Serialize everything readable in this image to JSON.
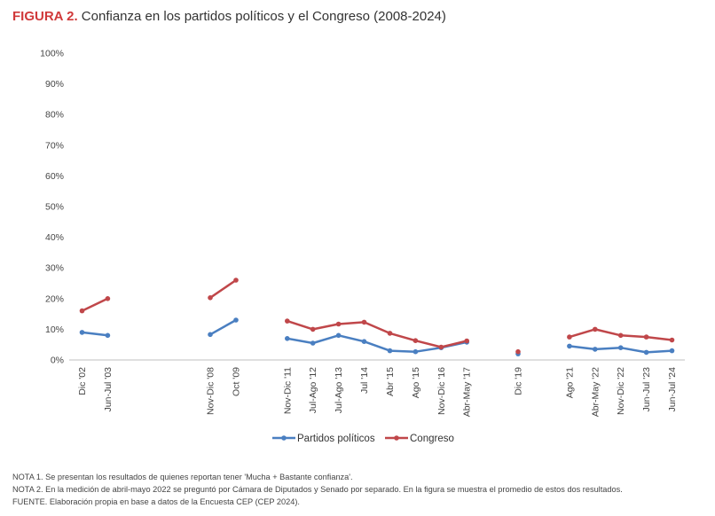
{
  "header": {
    "figure_label": "FIGURA 2.",
    "title": "Confianza en los partidos políticos y el Congreso (2008-2024)"
  },
  "colors": {
    "partidos": "#4a7fc1",
    "congreso": "#c0474a",
    "title_accent": "#d0393a"
  },
  "chart_data": {
    "type": "line",
    "title": "Confianza en los partidos políticos y el Congreso (2008-2024)",
    "categories": [
      "Dic '02",
      "Jun-Jul '03",
      "",
      "",
      "",
      "Nov-Dic '08",
      "Oct '09",
      "",
      "Nov-Dic '11",
      "Jul-Ago '12",
      "Jul-Ago '13",
      "Jul '14",
      "Abr '15",
      "Ago '15",
      "Nov-Dic '16",
      "Abr-May '17",
      "",
      "Dic '19",
      "",
      "Ago '21",
      "Abr-May '22",
      "Nov-Dic '22",
      "Jun-Jul '23",
      "Jun-Jul '24"
    ],
    "series": [
      {
        "name": "Partidos políticos",
        "values": [
          9,
          8,
          null,
          null,
          null,
          8.3,
          13,
          null,
          7,
          5.5,
          8,
          6,
          3,
          2.7,
          4,
          5.8,
          null,
          2,
          null,
          4.5,
          3.5,
          4,
          2.5,
          3
        ]
      },
      {
        "name": "Congreso",
        "values": [
          16,
          20,
          null,
          null,
          null,
          20.3,
          26,
          null,
          12.7,
          10,
          11.7,
          12.3,
          8.7,
          6.3,
          4.2,
          6.2,
          null,
          2.7,
          null,
          7.5,
          10,
          8,
          7.5,
          6.5
        ]
      }
    ],
    "ylim": [
      0,
      100
    ],
    "yticks": [
      "0%",
      "10%",
      "20%",
      "30%",
      "40%",
      "50%",
      "60%",
      "70%",
      "80%",
      "90%",
      "100%"
    ],
    "grid": false,
    "legend": "bottom"
  },
  "notes": [
    "NOTA 1. Se presentan los resultados de quienes reportan tener 'Mucha + Bastante confianza'.",
    "NOTA 2. En la medición de abril-mayo 2022 se preguntó por Cámara de Diputados y Senado por separado. En la figura se muestra el promedio de estos dos resultados.",
    "FUENTE. Elaboración propia en base a datos de la Encuesta CEP (CEP 2024)."
  ]
}
